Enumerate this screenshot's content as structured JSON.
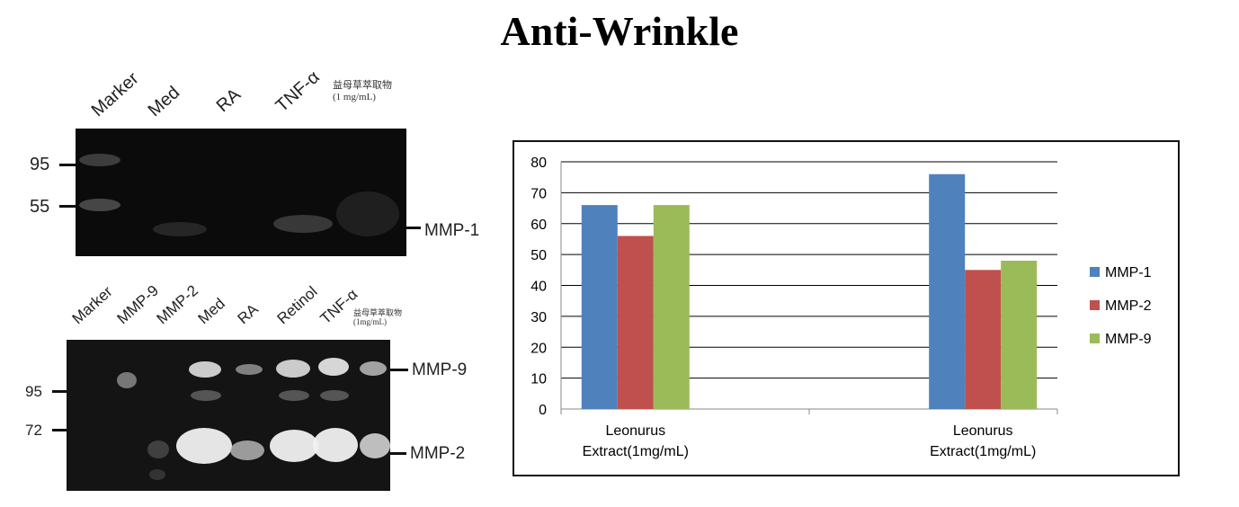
{
  "title": "Anti-Wrinkle",
  "blot_top": {
    "lane_labels": [
      "Marker",
      "Med",
      "RA",
      "TNF-α"
    ],
    "extract_label_line1": "益母草萃取物",
    "extract_label_line2": "(1 mg/mL)",
    "mw_labels": [
      "95",
      "55"
    ],
    "band_label": "MMP-1"
  },
  "blot_bottom": {
    "lane_labels": [
      "Marker",
      "MMP-9",
      "MMP-2",
      "Med",
      "RA",
      "Retinol",
      "TNF-α"
    ],
    "extract_label_line1": "益母草萃取物",
    "extract_label_line2": "(1mg/mL)",
    "mw_labels": [
      "95",
      "72"
    ],
    "band_labels": [
      "MMP-9",
      "MMP-2"
    ]
  },
  "chart_data": {
    "type": "bar",
    "categories": [
      "Leonurus Extract(1mg/mL)",
      "Leonurus Extract(1mg/mL)"
    ],
    "series": [
      {
        "name": "MMP-1",
        "values": [
          66,
          76
        ],
        "color": "#4f81bd"
      },
      {
        "name": "MMP-2",
        "values": [
          56,
          45
        ],
        "color": "#c0504d"
      },
      {
        "name": "MMP-9",
        "values": [
          66,
          48
        ],
        "color": "#9bbb59"
      }
    ],
    "ylim": [
      0,
      80
    ],
    "yticks": [
      0,
      10,
      20,
      30,
      40,
      50,
      60,
      70,
      80
    ],
    "xlabel": "",
    "ylabel": "",
    "grid": true,
    "legend_position": "right"
  }
}
